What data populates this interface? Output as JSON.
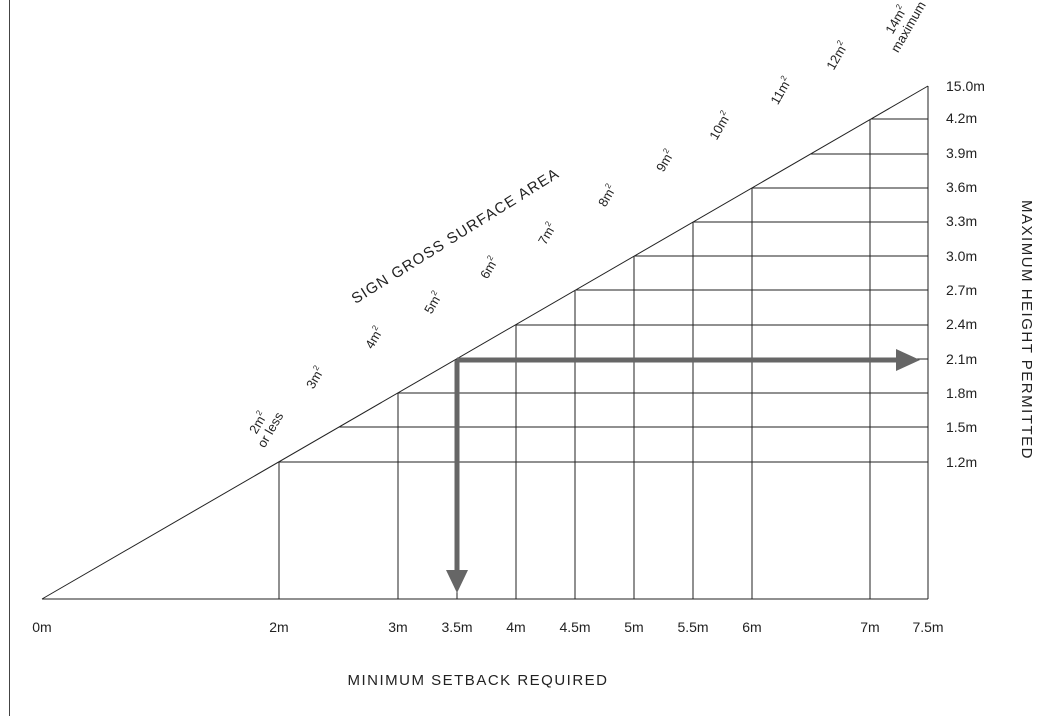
{
  "diagram": {
    "diagonal_label": "SIGN GROSS SURFACE AREA",
    "x_axis_title": "MINIMUM SETBACK REQUIRED",
    "y_axis_title": "MAXIMUM HEIGHT PERMITTED",
    "x_labels": [
      "0m",
      "2m",
      "3m",
      "3.5m",
      "4m",
      "4.5m",
      "5m",
      "5.5m",
      "6m",
      "7m",
      "7.5m"
    ],
    "y_labels": [
      "15.0m",
      "4.2m",
      "3.9m",
      "3.6m",
      "3.3m",
      "3.0m",
      "2.7m",
      "2.4m",
      "2.1m",
      "1.8m",
      "1.5m",
      "1.2m"
    ],
    "area_labels": [
      {
        "text": "2m",
        "sup": "2",
        "line2": "or less"
      },
      {
        "text": "3m",
        "sup": "2"
      },
      {
        "text": "4m",
        "sup": "2"
      },
      {
        "text": "5m",
        "sup": "2"
      },
      {
        "text": "6m",
        "sup": "2"
      },
      {
        "text": "7m",
        "sup": "2"
      },
      {
        "text": "8m",
        "sup": "2"
      },
      {
        "text": "9m",
        "sup": "2"
      },
      {
        "text": "10m",
        "sup": "2"
      },
      {
        "text": "11m",
        "sup": "2"
      },
      {
        "text": "12m",
        "sup": "2"
      },
      {
        "text": "14m",
        "sup": "2",
        "line2": "maximum"
      }
    ],
    "example": {
      "description_from_arrows": "5m2 sign: 3.5m setback, 2.1m height",
      "arrow_color": "#666666"
    },
    "line_color": "#222222"
  }
}
